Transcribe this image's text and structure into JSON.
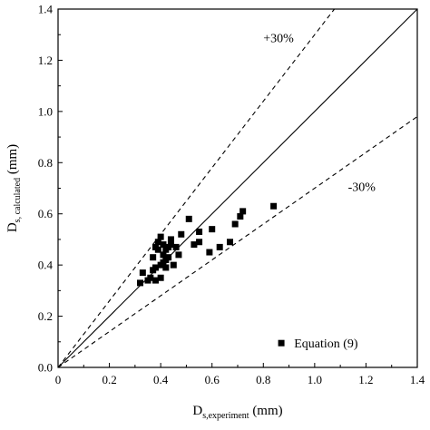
{
  "chart_data": {
    "type": "scatter",
    "xlabel": {
      "main": "D",
      "sub": "s,experiment",
      "unit": " (mm)"
    },
    "ylabel": {
      "main": "D",
      "sub": "s, calculated",
      "unit": " (mm)"
    },
    "xlim": [
      0,
      1.4
    ],
    "ylim": [
      0,
      1.4
    ],
    "x_ticks": [
      "0",
      "0.2",
      "0.4",
      "0.6",
      "0.8",
      "1.0",
      "1.2",
      "1.4"
    ],
    "y_ticks": [
      "0.0",
      "0.2",
      "0.4",
      "0.6",
      "0.8",
      "1.0",
      "1.2",
      "1.4"
    ],
    "x_tick_values": [
      0,
      0.2,
      0.4,
      0.6,
      0.8,
      1.0,
      1.2,
      1.4
    ],
    "y_tick_values": [
      0,
      0.2,
      0.4,
      0.6,
      0.8,
      1.0,
      1.2,
      1.4
    ],
    "grid": false,
    "legend_placement": "bottom-right",
    "lines": [
      {
        "kind": "identity",
        "slope": 1.0,
        "style": "solid"
      },
      {
        "kind": "upper",
        "slope": 1.3,
        "style": "dashed",
        "label": "+30%"
      },
      {
        "kind": "lower",
        "slope": 0.7,
        "style": "dashed",
        "label": "-30%"
      }
    ],
    "series": [
      {
        "name": "Equation (9)",
        "marker": "square",
        "color": "#000000",
        "points": [
          [
            0.32,
            0.33
          ],
          [
            0.33,
            0.37
          ],
          [
            0.35,
            0.34
          ],
          [
            0.36,
            0.35
          ],
          [
            0.37,
            0.38
          ],
          [
            0.37,
            0.43
          ],
          [
            0.38,
            0.34
          ],
          [
            0.38,
            0.39
          ],
          [
            0.38,
            0.47
          ],
          [
            0.39,
            0.49
          ],
          [
            0.39,
            0.46
          ],
          [
            0.4,
            0.51
          ],
          [
            0.4,
            0.35
          ],
          [
            0.4,
            0.4
          ],
          [
            0.41,
            0.41
          ],
          [
            0.41,
            0.44
          ],
          [
            0.41,
            0.48
          ],
          [
            0.42,
            0.39
          ],
          [
            0.42,
            0.42
          ],
          [
            0.42,
            0.46
          ],
          [
            0.43,
            0.43
          ],
          [
            0.43,
            0.47
          ],
          [
            0.44,
            0.5
          ],
          [
            0.44,
            0.48
          ],
          [
            0.45,
            0.4
          ],
          [
            0.46,
            0.47
          ],
          [
            0.47,
            0.44
          ],
          [
            0.48,
            0.52
          ],
          [
            0.51,
            0.58
          ],
          [
            0.53,
            0.48
          ],
          [
            0.55,
            0.49
          ],
          [
            0.55,
            0.53
          ],
          [
            0.59,
            0.45
          ],
          [
            0.6,
            0.54
          ],
          [
            0.63,
            0.47
          ],
          [
            0.67,
            0.49
          ],
          [
            0.69,
            0.56
          ],
          [
            0.71,
            0.59
          ],
          [
            0.72,
            0.61
          ],
          [
            0.84,
            0.63
          ]
        ]
      }
    ]
  }
}
